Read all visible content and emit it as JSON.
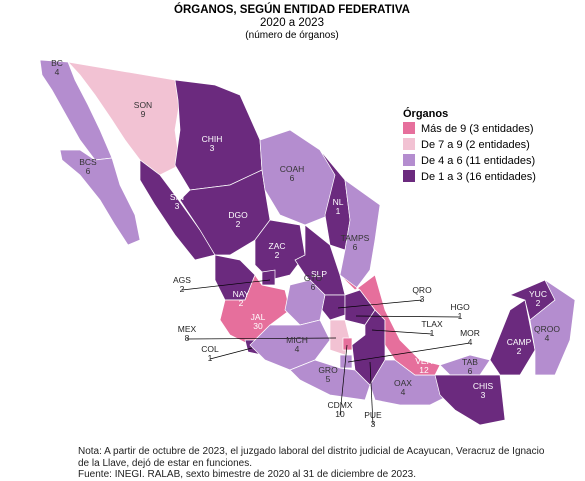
{
  "title": "ÓRGANOS, SEGÚN ENTIDAD FEDERATIVA",
  "subtitle": "2020 a 2023",
  "unit_note": "(número de órganos)",
  "legend": {
    "title": "Órganos",
    "items": [
      {
        "label": "Más de 9 (3 entidades)",
        "color": "#e66f9c"
      },
      {
        "label": "De 7 a 9 (2 entidades)",
        "color": "#f2c2d3"
      },
      {
        "label": "De 4 a 6 (11 entidades)",
        "color": "#b48dcf"
      },
      {
        "label": "De 1 a 3 (16 entidades)",
        "color": "#6b2a7e"
      }
    ]
  },
  "states": [
    {
      "abbr": "BC",
      "value": 4,
      "class": 2
    },
    {
      "abbr": "SON",
      "value": 9,
      "class": 1
    },
    {
      "abbr": "CHIH",
      "value": 3,
      "class": 3
    },
    {
      "abbr": "BCS",
      "value": 6,
      "class": 2
    },
    {
      "abbr": "SIN",
      "value": 3,
      "class": 3
    },
    {
      "abbr": "DGO",
      "value": 2,
      "class": 3
    },
    {
      "abbr": "COAH",
      "value": 6,
      "class": 2
    },
    {
      "abbr": "NL",
      "value": 1,
      "class": 3
    },
    {
      "abbr": "TAMPS",
      "value": 6,
      "class": 2
    },
    {
      "abbr": "ZAC",
      "value": 2,
      "class": 3
    },
    {
      "abbr": "SLP",
      "class": 3
    },
    {
      "abbr": "AGS",
      "value": 2,
      "class": 3
    },
    {
      "abbr": "NAY",
      "value": 2,
      "class": 3
    },
    {
      "abbr": "JAL",
      "value": 30,
      "class": 0
    },
    {
      "abbr": "GTO",
      "value": 6,
      "class": 2
    },
    {
      "abbr": "QRO",
      "value": 3,
      "class": 3
    },
    {
      "abbr": "HGO",
      "value": 1,
      "class": 3
    },
    {
      "abbr": "TLAX",
      "value": 1,
      "class": 3
    },
    {
      "abbr": "MOR",
      "value": 4,
      "class": 2
    },
    {
      "abbr": "MEX",
      "value": 8,
      "class": 1
    },
    {
      "abbr": "COL",
      "value": 1,
      "class": 3
    },
    {
      "abbr": "MICH",
      "value": 4,
      "class": 2
    },
    {
      "abbr": "GRO",
      "value": 5,
      "class": 2
    },
    {
      "abbr": "CDMX",
      "value": 10,
      "class": 0
    },
    {
      "abbr": "PUE",
      "value": 3,
      "class": 3
    },
    {
      "abbr": "OAX",
      "value": 4,
      "class": 2
    },
    {
      "abbr": "VER",
      "value": 12,
      "class": 0
    },
    {
      "abbr": "TAB",
      "value": 6,
      "class": 2
    },
    {
      "abbr": "CHIS",
      "value": 3,
      "class": 3
    },
    {
      "abbr": "CAMP",
      "value": 2,
      "class": 3
    },
    {
      "abbr": "YUC",
      "value": 2,
      "class": 3
    },
    {
      "abbr": "QROO",
      "value": 4,
      "class": 2
    }
  ],
  "notes": [
    "Nota: A partir de octubre de 2023, el juzgado laboral del distrito judicial de Acayucan, Veracruz de Ignacio de la Llave, dejó de estar en funciones.",
    "Fuente: INEGI. RALAB, sexto bimestre de 2020 al 31 de diciembre de 2023."
  ]
}
